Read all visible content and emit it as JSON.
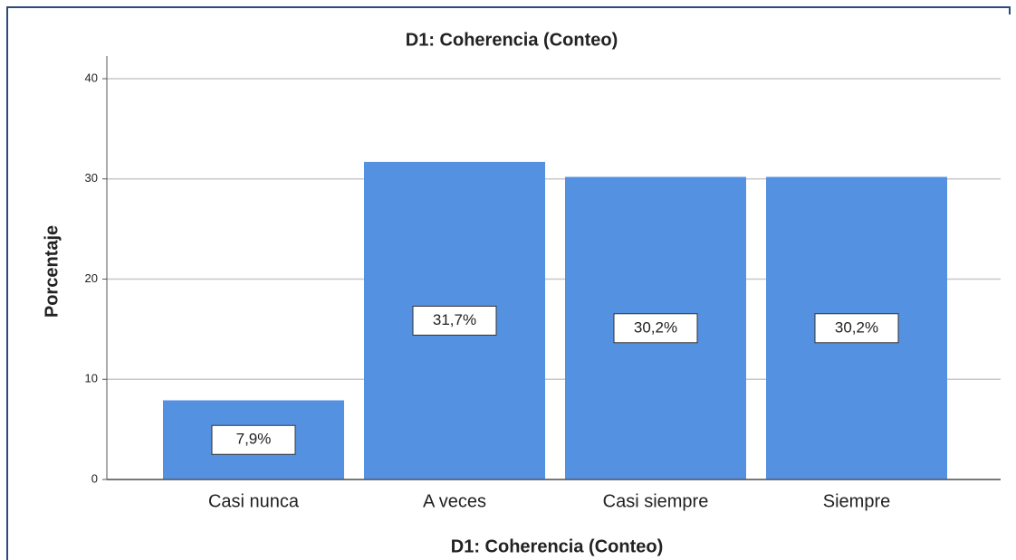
{
  "chart_data": {
    "type": "bar",
    "title": "D1: Coherencia (Conteo)",
    "xlabel": "D1: Coherencia (Conteo)",
    "ylabel": "Porcentaje",
    "categories": [
      "Casi nunca",
      "A veces",
      "Casi siempre",
      "Siempre"
    ],
    "values": [
      7.9,
      31.7,
      30.2,
      30.2
    ],
    "value_labels": [
      "7,9%",
      "31,7%",
      "30,2%",
      "30,2%"
    ],
    "color": "#5591e1",
    "ylim": [
      0,
      40
    ],
    "yticks": [
      0,
      10,
      20,
      30,
      40
    ],
    "grid": true
  }
}
